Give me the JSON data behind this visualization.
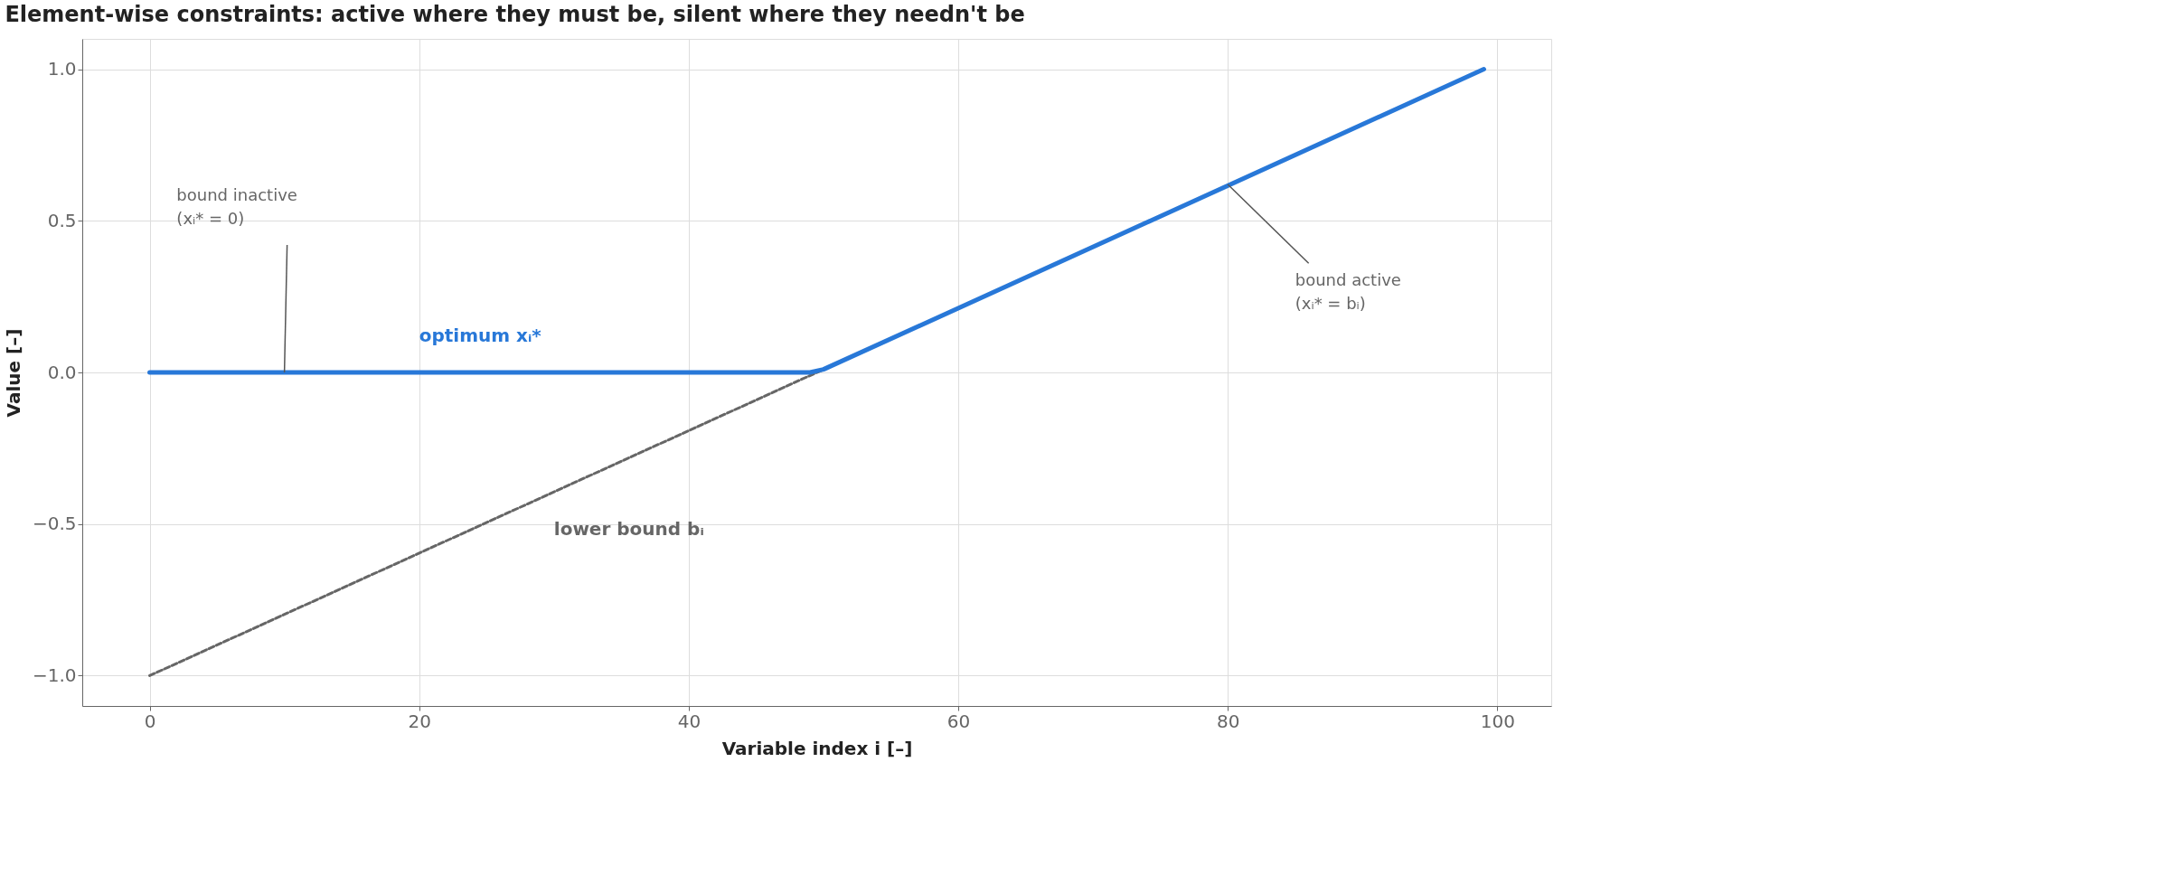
{
  "chart_data": {
    "type": "line",
    "title": "Element-wise constraints: active where they must be, silent where they needn't be",
    "xlabel": "Variable index i [–]",
    "ylabel": "Value [–]",
    "series": [
      {
        "name": "lower bound bᵢ",
        "color": "#666666",
        "line_style": "dashed",
        "x": [
          0,
          50
        ],
        "values": [
          -1,
          0.01
        ]
      },
      {
        "name": "optimum xᵢ*",
        "color": "#2878d8",
        "line_style": "solid",
        "x": [
          0,
          49,
          50,
          99
        ],
        "values": [
          0,
          0,
          0.01,
          1
        ]
      }
    ],
    "annotations": [
      {
        "text": "bound inactive\n(xᵢ* = 0)",
        "x": 10,
        "y": 0
      },
      {
        "text": "bound active\n(xᵢ* = bᵢ)",
        "x": 80,
        "y": 0.62
      }
    ],
    "xlim": [
      -5,
      104
    ],
    "xticks": [
      0,
      20,
      40,
      60,
      80,
      100
    ],
    "ylim": [
      -1.1,
      1.1
    ],
    "yticks": [
      {
        "value": -1,
        "label": "−1.0"
      },
      {
        "value": -0.5,
        "label": "−0.5"
      },
      {
        "value": 0,
        "label": "0.0"
      },
      {
        "value": 0.5,
        "label": "0.5"
      },
      {
        "value": 1,
        "label": "1.0"
      }
    ],
    "grid": true
  }
}
